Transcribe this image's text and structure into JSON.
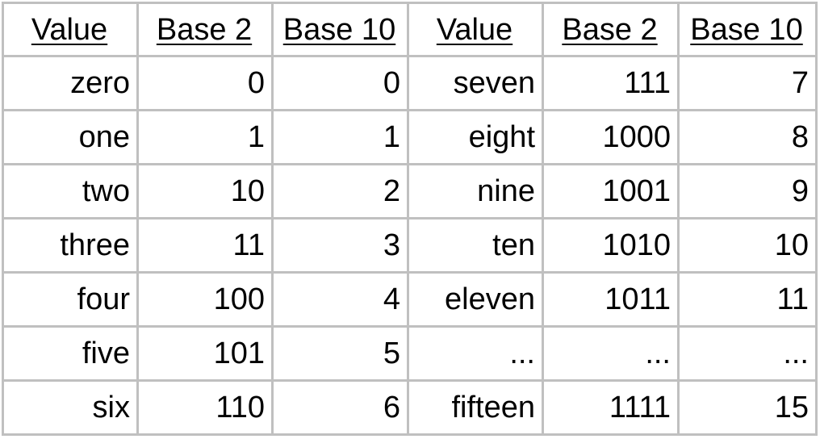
{
  "table": {
    "headers": [
      "Value",
      "Base 2",
      "Base 10",
      "Value",
      "Base 2",
      "Base 10"
    ],
    "rows": [
      [
        "zero",
        "0",
        "0",
        "seven",
        "111",
        "7"
      ],
      [
        "one",
        "1",
        "1",
        "eight",
        "1000",
        "8"
      ],
      [
        "two",
        "10",
        "2",
        "nine",
        "1001",
        "9"
      ],
      [
        "three",
        "11",
        "3",
        "ten",
        "1010",
        "10"
      ],
      [
        "four",
        "100",
        "4",
        "eleven",
        "1011",
        "11"
      ],
      [
        "five",
        "101",
        "5",
        "...",
        "...",
        "..."
      ],
      [
        "six",
        "110",
        "6",
        "fifteen",
        "1111",
        "15"
      ]
    ]
  },
  "colors": {
    "grid": "#c0c0c0",
    "text": "#000000",
    "background": "#ffffff"
  }
}
